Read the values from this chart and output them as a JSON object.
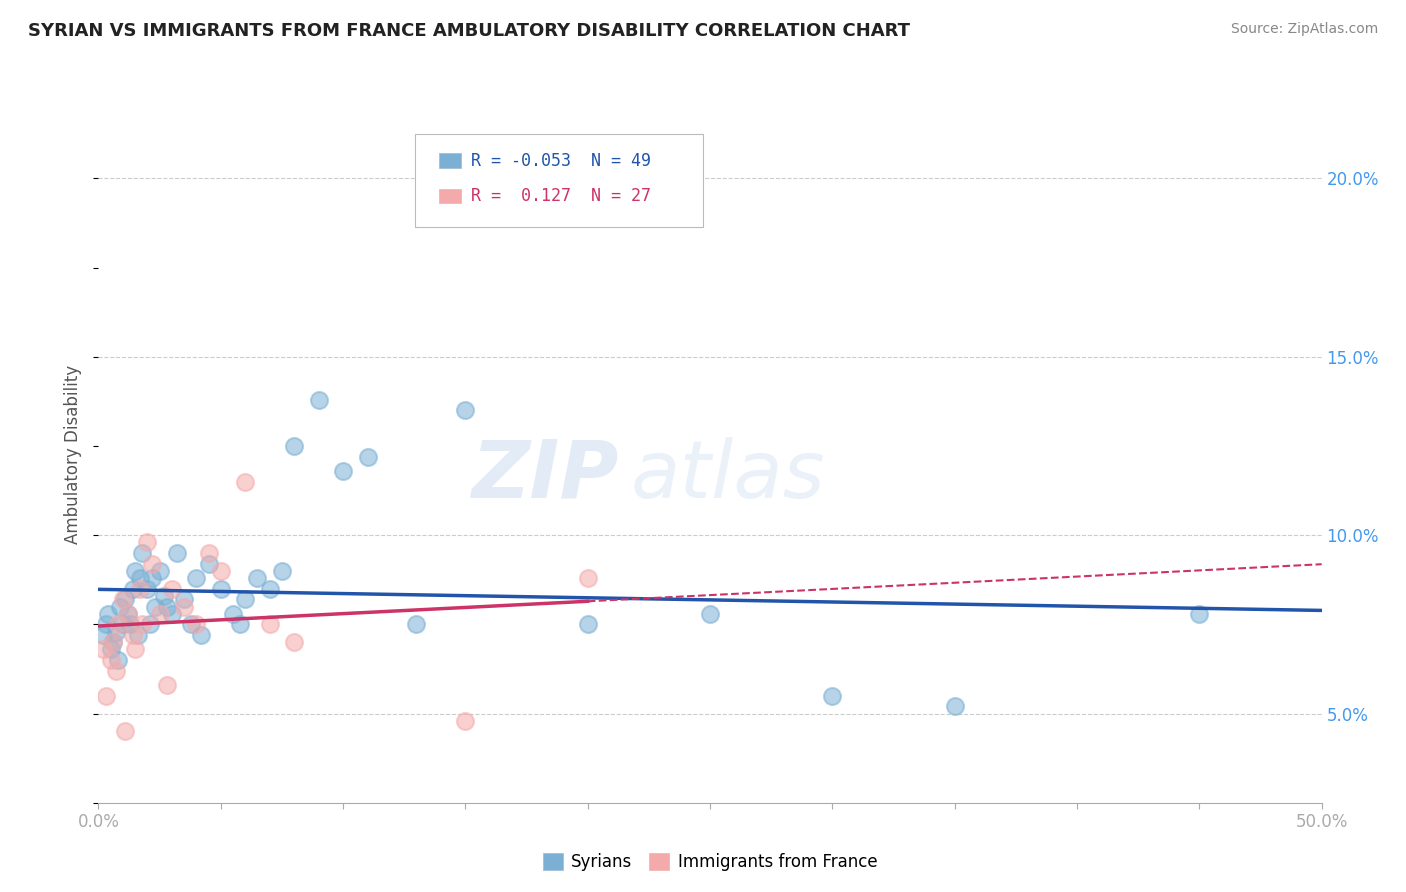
{
  "title": "SYRIAN VS IMMIGRANTS FROM FRANCE AMBULATORY DISABILITY CORRELATION CHART",
  "source": "Source: ZipAtlas.com",
  "ylabel": "Ambulatory Disability",
  "ylabel_ticks": [
    "5.0%",
    "10.0%",
    "15.0%",
    "20.0%"
  ],
  "ylabel_tick_vals": [
    5.0,
    10.0,
    15.0,
    20.0
  ],
  "xlim": [
    0.0,
    50.0
  ],
  "ylim": [
    2.5,
    22.0
  ],
  "watermark_zip": "ZIP",
  "watermark_atlas": "atlas",
  "legend_syrians_R": "-0.053",
  "legend_syrians_N": "49",
  "legend_france_R": "0.127",
  "legend_france_N": "27",
  "syrians_color": "#7BAFD4",
  "france_color": "#F4AAAA",
  "syrians_line_color": "#2255AA",
  "france_line_color": "#CC3366",
  "grid_color": "#CCCCCC",
  "bg_color": "#FFFFFF",
  "syrians_x": [
    0.2,
    0.3,
    0.4,
    0.5,
    0.6,
    0.7,
    0.8,
    0.9,
    1.0,
    1.1,
    1.2,
    1.4,
    1.5,
    1.6,
    1.7,
    2.0,
    2.1,
    2.3,
    2.5,
    2.7,
    3.0,
    3.2,
    3.5,
    3.8,
    4.0,
    4.5,
    5.0,
    5.5,
    6.0,
    6.5,
    7.0,
    7.5,
    8.0,
    9.0,
    10.0,
    11.0,
    13.0,
    15.0,
    20.0,
    25.0,
    30.0,
    35.0,
    45.0,
    1.3,
    1.8,
    2.2,
    2.8,
    4.2,
    5.8
  ],
  "syrians_y": [
    7.2,
    7.5,
    7.8,
    6.8,
    7.0,
    7.3,
    6.5,
    8.0,
    7.5,
    8.2,
    7.8,
    8.5,
    9.0,
    7.2,
    8.8,
    8.5,
    7.5,
    8.0,
    9.0,
    8.3,
    7.8,
    9.5,
    8.2,
    7.5,
    8.8,
    9.2,
    8.5,
    7.8,
    8.2,
    8.8,
    8.5,
    9.0,
    12.5,
    13.8,
    11.8,
    12.2,
    7.5,
    13.5,
    7.5,
    7.8,
    5.5,
    5.2,
    7.8,
    7.5,
    9.5,
    8.8,
    8.0,
    7.2,
    7.5
  ],
  "france_x": [
    0.2,
    0.3,
    0.5,
    0.6,
    0.7,
    0.8,
    1.0,
    1.1,
    1.2,
    1.4,
    1.5,
    1.7,
    1.8,
    2.0,
    2.2,
    2.5,
    2.8,
    3.0,
    3.5,
    4.0,
    4.5,
    5.0,
    6.0,
    7.0,
    8.0,
    15.0,
    20.0
  ],
  "france_y": [
    6.8,
    5.5,
    6.5,
    7.0,
    6.2,
    7.5,
    8.2,
    4.5,
    7.8,
    7.2,
    6.8,
    8.5,
    7.5,
    9.8,
    9.2,
    7.8,
    5.8,
    8.5,
    8.0,
    7.5,
    9.5,
    9.0,
    11.5,
    7.5,
    7.0,
    4.8,
    8.8
  ],
  "france_line_xmax_data": 20.0,
  "france_line_xmax_dashed": 50.0
}
